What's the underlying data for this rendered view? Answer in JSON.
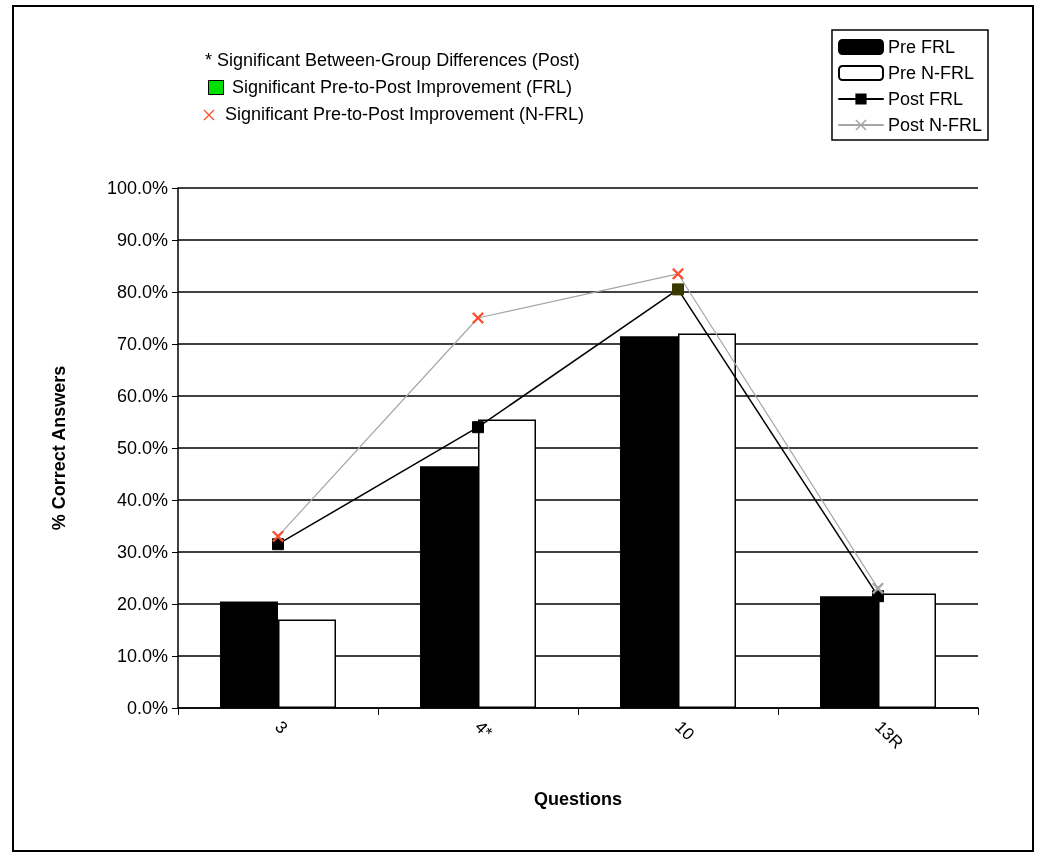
{
  "chart_data": {
    "type": "bar",
    "categories": [
      "3",
      "4*",
      "10",
      "13R"
    ],
    "series": [
      {
        "name": "Pre FRL",
        "color": "#000000",
        "values": [
          20.5,
          46.5,
          71.5,
          21.5
        ]
      },
      {
        "name": "Pre N-FRL",
        "color": "#ffffff",
        "values": [
          17,
          55.5,
          72,
          22
        ]
      },
      {
        "name": "Post FRL",
        "type": "line",
        "marker": "square",
        "color": "#000000",
        "colors": [
          "#000000",
          "#000000",
          "#3a3a00",
          "#000000"
        ],
        "values": [
          31.5,
          54,
          80.5,
          21.5
        ]
      },
      {
        "name": "Post N-FRL",
        "type": "line",
        "marker": "cross",
        "color": "#a6a6a6",
        "colors": [
          "#ff4d2e",
          "#ff4d2e",
          "#ff4d2e",
          "#a6a6a6"
        ],
        "values": [
          33,
          75,
          83.5,
          23
        ]
      }
    ],
    "xlabel": "Questions",
    "ylabel": "% Correct Answers",
    "ylim": [
      0,
      100
    ],
    "yticks": [
      {
        "value": 0,
        "label": "0.0%"
      },
      {
        "value": 10,
        "label": "10.0%"
      },
      {
        "value": 20,
        "label": "20.0%"
      },
      {
        "value": 30,
        "label": "30.0%"
      },
      {
        "value": 40,
        "label": "40.0%"
      },
      {
        "value": 50,
        "label": "50.0%"
      },
      {
        "value": 60,
        "label": "60.0%"
      },
      {
        "value": 70,
        "label": "70.0%"
      },
      {
        "value": 80,
        "label": "80.0%"
      },
      {
        "value": 90,
        "label": "90.0%"
      },
      {
        "value": 100,
        "label": "100.0%"
      }
    ],
    "annotations": [
      "*  Significant Between-Group Differences (Post)",
      "Significant Pre-to-Post Improvement (FRL)",
      "Significant Pre-to-Post Improvement (N-FRL)"
    ],
    "grid": "y",
    "legend": "top right"
  }
}
